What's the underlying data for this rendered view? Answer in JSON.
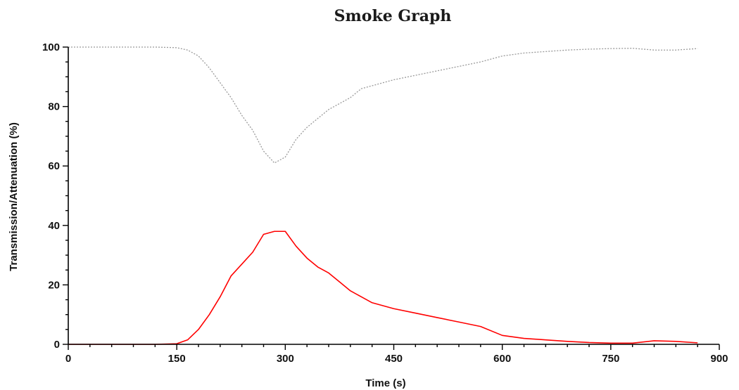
{
  "chart_data": {
    "type": "line",
    "title": "Smoke Graph",
    "xlabel": "Time (s)",
    "ylabel": "Transmission/Attenuation (%)",
    "xlim": [
      0,
      900
    ],
    "ylim": [
      0,
      100
    ],
    "x_ticks": [
      0,
      150,
      300,
      450,
      600,
      750,
      900
    ],
    "y_ticks": [
      0,
      20,
      40,
      60,
      80,
      100
    ],
    "grid": false,
    "series": [
      {
        "color": "#9a9a9a",
        "dash": "dotted",
        "x": [
          0,
          60,
          120,
          150,
          165,
          180,
          195,
          210,
          225,
          240,
          255,
          270,
          285,
          300,
          315,
          330,
          345,
          360,
          375,
          390,
          405,
          420,
          435,
          450,
          480,
          510,
          540,
          570,
          600,
          630,
          660,
          690,
          720,
          750,
          780,
          810,
          840,
          870
        ],
        "y": [
          100,
          100,
          100,
          99.8,
          99,
          97,
          93,
          88,
          83,
          77,
          72,
          65,
          61,
          63,
          69,
          73,
          76,
          79,
          81,
          83,
          86,
          87,
          88,
          89,
          90.5,
          92,
          93.5,
          95,
          97,
          98,
          98.5,
          99,
          99.3,
          99.5,
          99.6,
          99,
          99,
          99.5
        ]
      },
      {
        "color": "#ff0000",
        "dash": "solid",
        "x": [
          0,
          60,
          120,
          150,
          165,
          180,
          195,
          210,
          225,
          240,
          255,
          270,
          285,
          300,
          315,
          330,
          345,
          360,
          375,
          390,
          405,
          420,
          435,
          450,
          480,
          510,
          540,
          570,
          600,
          630,
          660,
          690,
          720,
          750,
          780,
          810,
          840,
          870
        ],
        "y": [
          0,
          0,
          0,
          0.2,
          1.5,
          5,
          10,
          16,
          23,
          27,
          31,
          37,
          38,
          38,
          33,
          29,
          26,
          24,
          21,
          18,
          16,
          14,
          13,
          12,
          10.5,
          9,
          7.5,
          6,
          3,
          2,
          1.5,
          1,
          0.6,
          0.4,
          0.4,
          1.2,
          1.0,
          0.5
        ]
      }
    ]
  }
}
